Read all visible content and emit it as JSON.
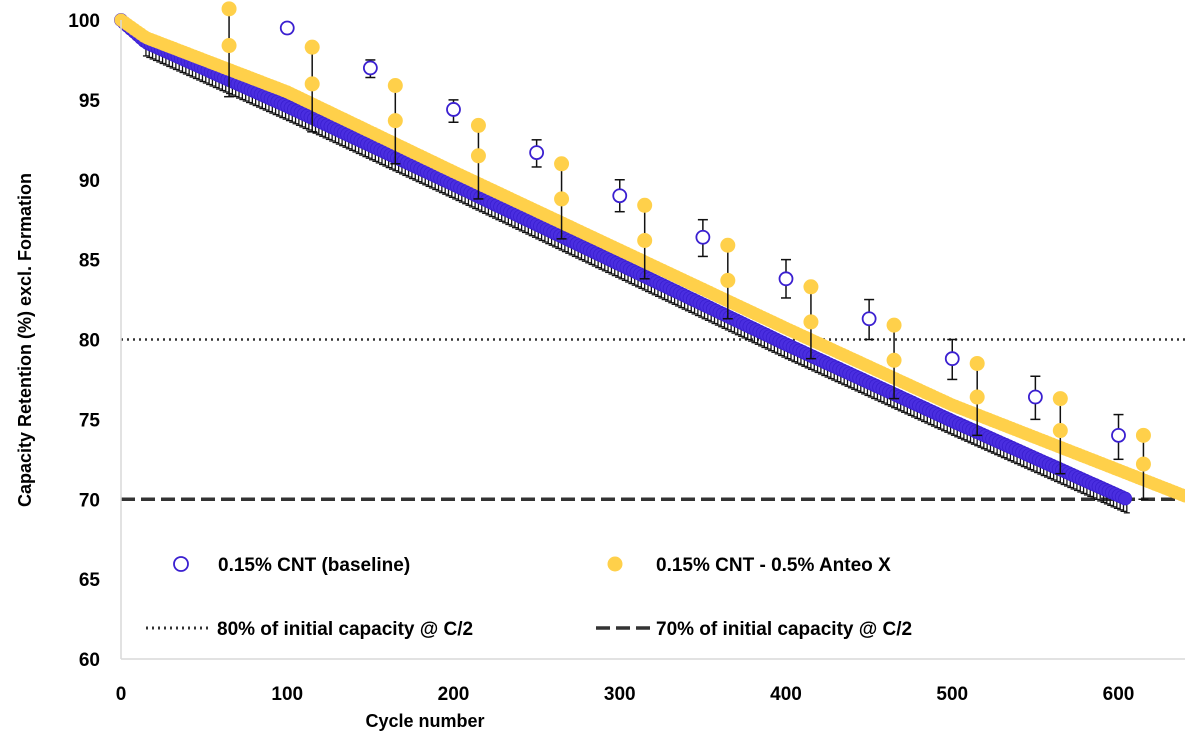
{
  "chart_data": {
    "type": "scatter",
    "xlabel": "Cycle number",
    "ylabel": "Capacity Retention (%) excl. Formation",
    "xlim": [
      0,
      640
    ],
    "ylim": [
      60,
      100
    ],
    "x_ticks": [
      "0",
      "100",
      "200",
      "300",
      "400",
      "500",
      "600"
    ],
    "y_ticks": [
      "60",
      "65",
      "70",
      "75",
      "80",
      "85",
      "90",
      "95",
      "100"
    ],
    "grid": false,
    "legend_position": "bottom-inside",
    "series": [
      {
        "name": "0.15% CNT (baseline)",
        "marker": "open-circle",
        "color": "#3a1fd0",
        "trend_x": [
          0,
          15,
          100,
          200,
          300,
          400,
          500,
          605
        ],
        "trend_y": [
          100,
          98.6,
          94.6,
          89.7,
          84.7,
          79.7,
          74.9,
          70.0
        ],
        "marked_x": [
          100,
          150,
          200,
          250,
          300,
          350,
          400,
          450,
          500,
          550,
          600
        ],
        "marked_y": [
          99.5,
          97.0,
          94.4,
          91.7,
          89.0,
          86.4,
          83.8,
          81.3,
          78.8,
          76.4,
          74.0
        ],
        "err_low": [
          99.2,
          96.4,
          93.6,
          90.8,
          88.0,
          85.2,
          82.6,
          80.0,
          77.5,
          75.0,
          72.5
        ],
        "err_high": [
          99.8,
          97.5,
          95.0,
          92.5,
          90.0,
          87.5,
          85.0,
          82.5,
          80.0,
          77.7,
          75.3
        ]
      },
      {
        "name": "0.15% CNT - 0.5% Anteo X",
        "marker": "filled-circle",
        "color": "#ffd04a",
        "trend_x": [
          0,
          15,
          100,
          200,
          300,
          400,
          500,
          640
        ],
        "trend_y": [
          100,
          98.9,
          95.5,
          90.5,
          85.6,
          80.7,
          75.9,
          70.2
        ],
        "marked_x": [
          65,
          115,
          165,
          215,
          265,
          315,
          365,
          415,
          465,
          515,
          565,
          615
        ],
        "marked_y": [
          100.7,
          98.3,
          95.9,
          93.4,
          91.0,
          88.4,
          85.9,
          83.3,
          80.9,
          78.5,
          76.3,
          74.0
        ],
        "marked_y2": [
          98.4,
          96.0,
          93.7,
          91.5,
          88.8,
          86.2,
          83.7,
          81.1,
          78.7,
          76.4,
          74.3,
          72.2
        ],
        "err_low": [
          95.2,
          93.0,
          91.0,
          88.8,
          86.3,
          83.8,
          81.3,
          78.8,
          76.3,
          74.0,
          71.6,
          70.0
        ],
        "err_high": [
          100.7,
          98.3,
          95.9,
          93.4,
          91.0,
          88.4,
          85.9,
          83.3,
          80.9,
          78.5,
          76.3,
          74.0
        ]
      }
    ],
    "reference_lines": [
      {
        "name": "80% of initial capacity @ C/2",
        "y": 80,
        "style": "dotted",
        "color": "#333333"
      },
      {
        "name": "70% of initial capacity @ C/2",
        "y": 70,
        "style": "dashed",
        "color": "#333333"
      }
    ]
  }
}
